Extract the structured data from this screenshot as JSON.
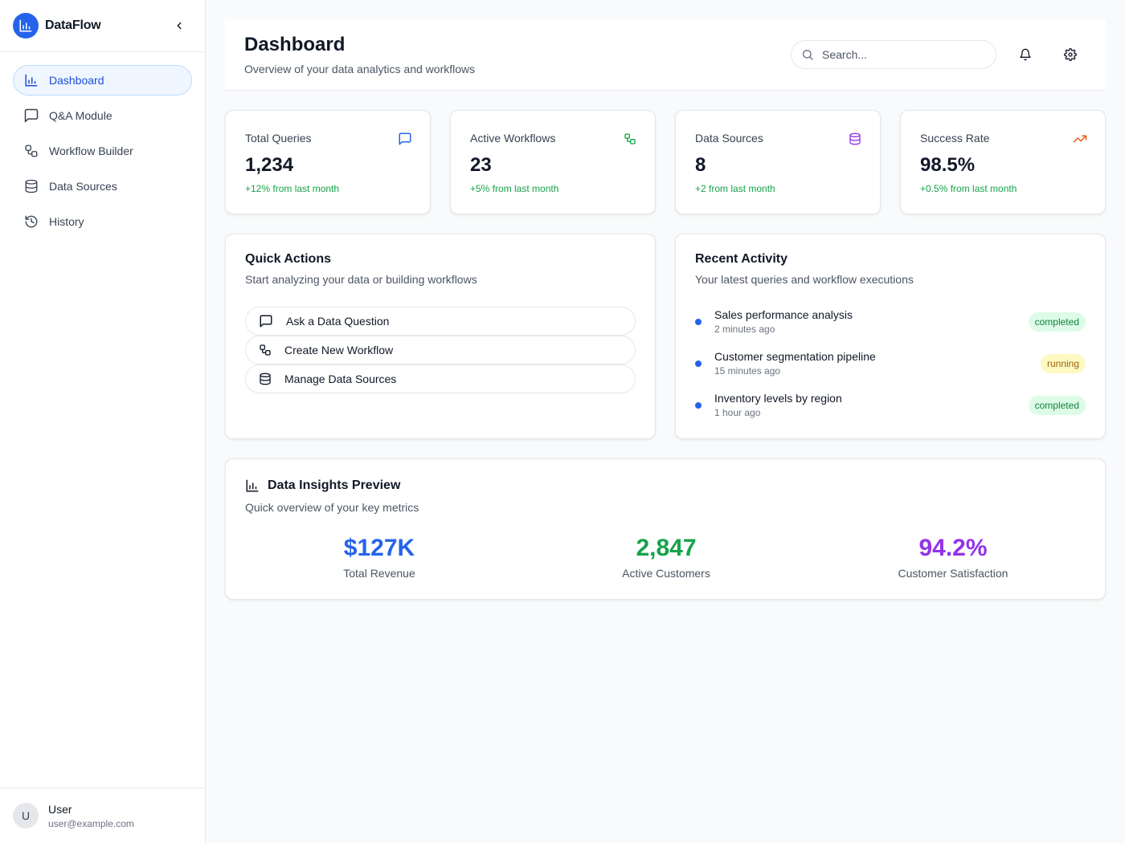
{
  "app": {
    "name": "DataFlow"
  },
  "sidebar": {
    "items": [
      {
        "label": "Dashboard",
        "icon": "bar-chart-icon",
        "active": true
      },
      {
        "label": "Q&A Module",
        "icon": "message-square-icon"
      },
      {
        "label": "Workflow Builder",
        "icon": "workflow-icon"
      },
      {
        "label": "Data Sources",
        "icon": "database-icon"
      },
      {
        "label": "History",
        "icon": "history-icon"
      }
    ],
    "user": {
      "initial": "U",
      "name": "User",
      "email": "user@example.com"
    }
  },
  "header": {
    "title": "Dashboard",
    "subtitle": "Overview of your data analytics and workflows",
    "search_placeholder": "Search..."
  },
  "stats": [
    {
      "title": "Total Queries",
      "value": "1,234",
      "change": "+12% from last month",
      "icon": "message-square-icon",
      "color": "#2563eb"
    },
    {
      "title": "Active Workflows",
      "value": "23",
      "change": "+5% from last month",
      "icon": "workflow-icon",
      "color": "#16a34a"
    },
    {
      "title": "Data Sources",
      "value": "8",
      "change": "+2 from last month",
      "icon": "database-icon",
      "color": "#9333ea"
    },
    {
      "title": "Success Rate",
      "value": "98.5%",
      "change": "+0.5% from last month",
      "icon": "trending-up-icon",
      "color": "#ea580c"
    }
  ],
  "quick_actions": {
    "title": "Quick Actions",
    "subtitle": "Start analyzing your data or building workflows",
    "buttons": [
      {
        "label": "Ask a Data Question",
        "icon": "message-square-icon"
      },
      {
        "label": "Create New Workflow",
        "icon": "workflow-icon"
      },
      {
        "label": "Manage Data Sources",
        "icon": "database-icon"
      }
    ]
  },
  "recent_activity": {
    "title": "Recent Activity",
    "subtitle": "Your latest queries and workflow executions",
    "items": [
      {
        "title": "Sales performance analysis",
        "time": "2 minutes ago",
        "status": "completed"
      },
      {
        "title": "Customer segmentation pipeline",
        "time": "15 minutes ago",
        "status": "running"
      },
      {
        "title": "Inventory levels by region",
        "time": "1 hour ago",
        "status": "completed"
      }
    ]
  },
  "insights": {
    "title": "Data Insights Preview",
    "subtitle": "Quick overview of your key metrics",
    "metrics": [
      {
        "value": "$127K",
        "label": "Total Revenue",
        "color": "#2563eb"
      },
      {
        "value": "2,847",
        "label": "Active Customers",
        "color": "#16a34a"
      },
      {
        "value": "94.2%",
        "label": "Customer Satisfaction",
        "color": "#9333ea"
      }
    ]
  }
}
